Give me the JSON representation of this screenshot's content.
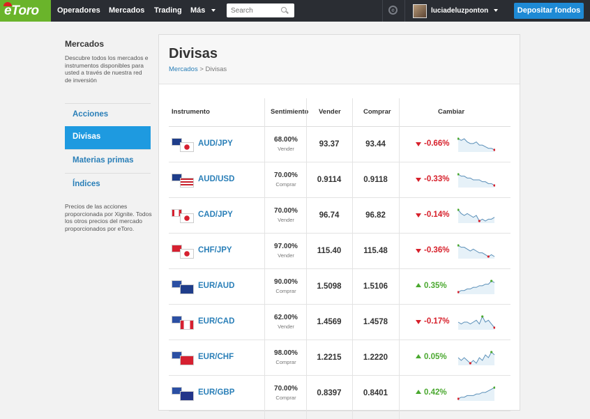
{
  "header": {
    "logo": "eToro",
    "nav": [
      "Operadores",
      "Mercados",
      "Trading",
      "Más"
    ],
    "search_placeholder": "Search",
    "username": "luciadeluzponton",
    "deposit_label": "Depositar fondos"
  },
  "sidebar": {
    "title": "Mercados",
    "description": "Descubre todos los mercados e instrumentos disponibles para usted a través de nuestra red de inversión",
    "items": [
      {
        "label": "Acciones",
        "active": false
      },
      {
        "label": "Divisas",
        "active": true
      },
      {
        "label": "Materias primas",
        "active": false
      },
      {
        "label": "Índices",
        "active": false
      }
    ],
    "note": "Precios de las acciones proporcionada por Xignite. Todos los otros precios del mercado proporcionados por eToro."
  },
  "main": {
    "title": "Divisas",
    "breadcrumb": {
      "parent": "Mercados",
      "separator": " > ",
      "current": "Divisas"
    },
    "columns": [
      "Instrumento",
      "Sentimiento",
      "Vender",
      "Comprar",
      "Cambiar"
    ],
    "rows": [
      {
        "pair": "AUD/JPY",
        "flags": [
          "au",
          "jp"
        ],
        "sentiment": "68.00%",
        "sentiment_label": "Vender",
        "sell": "93.37",
        "buy": "93.44",
        "change": "-0.66%",
        "direction": "down",
        "spark": [
          8,
          7,
          8,
          6,
          5,
          5,
          6,
          4,
          4,
          3,
          2,
          2,
          1
        ]
      },
      {
        "pair": "AUD/USD",
        "flags": [
          "au",
          "us"
        ],
        "sentiment": "70.00%",
        "sentiment_label": "Comprar",
        "sell": "0.9114",
        "buy": "0.9118",
        "change": "-0.33%",
        "direction": "down",
        "spark": [
          8,
          7,
          7,
          6,
          6,
          5,
          5,
          5,
          4,
          4,
          3,
          3,
          2
        ]
      },
      {
        "pair": "CAD/JPY",
        "flags": [
          "ca",
          "jp"
        ],
        "sentiment": "70.00%",
        "sentiment_label": "Vender",
        "sell": "96.74",
        "buy": "96.82",
        "change": "-0.14%",
        "direction": "down",
        "spark": [
          9,
          7,
          6,
          7,
          6,
          5,
          6,
          3,
          4,
          3,
          4,
          4,
          5
        ]
      },
      {
        "pair": "CHF/JPY",
        "flags": [
          "ch",
          "jp"
        ],
        "sentiment": "97.00%",
        "sentiment_label": "Vender",
        "sell": "115.40",
        "buy": "115.48",
        "change": "-0.36%",
        "direction": "down",
        "spark": [
          8,
          7,
          7,
          6,
          5,
          6,
          5,
          4,
          4,
          3,
          2,
          3,
          2
        ]
      },
      {
        "pair": "EUR/AUD",
        "flags": [
          "eu",
          "au"
        ],
        "sentiment": "90.00%",
        "sentiment_label": "Comprar",
        "sell": "1.5098",
        "buy": "1.5106",
        "change": "0.35%",
        "direction": "up",
        "spark": [
          1,
          2,
          2,
          3,
          3,
          4,
          4,
          5,
          5,
          6,
          6,
          8,
          7
        ]
      },
      {
        "pair": "EUR/CAD",
        "flags": [
          "eu",
          "ca"
        ],
        "sentiment": "62.00%",
        "sentiment_label": "Vender",
        "sell": "1.4569",
        "buy": "1.4578",
        "change": "-0.17%",
        "direction": "down",
        "spark": [
          5,
          4,
          5,
          5,
          4,
          5,
          6,
          4,
          8,
          5,
          6,
          4,
          2
        ]
      },
      {
        "pair": "EUR/CHF",
        "flags": [
          "eu",
          "ch"
        ],
        "sentiment": "98.00%",
        "sentiment_label": "Comprar",
        "sell": "1.2215",
        "buy": "1.2220",
        "change": "0.05%",
        "direction": "up",
        "spark": [
          4,
          3,
          4,
          3,
          2,
          3,
          2,
          4,
          3,
          5,
          4,
          6,
          5
        ]
      },
      {
        "pair": "EUR/GBP",
        "flags": [
          "eu",
          "gb"
        ],
        "sentiment": "70.00%",
        "sentiment_label": "Comprar",
        "sell": "0.8397",
        "buy": "0.8401",
        "change": "0.42%",
        "direction": "up",
        "spark": [
          1,
          2,
          2,
          3,
          3,
          3,
          4,
          4,
          5,
          5,
          6,
          7,
          8
        ]
      }
    ]
  }
}
